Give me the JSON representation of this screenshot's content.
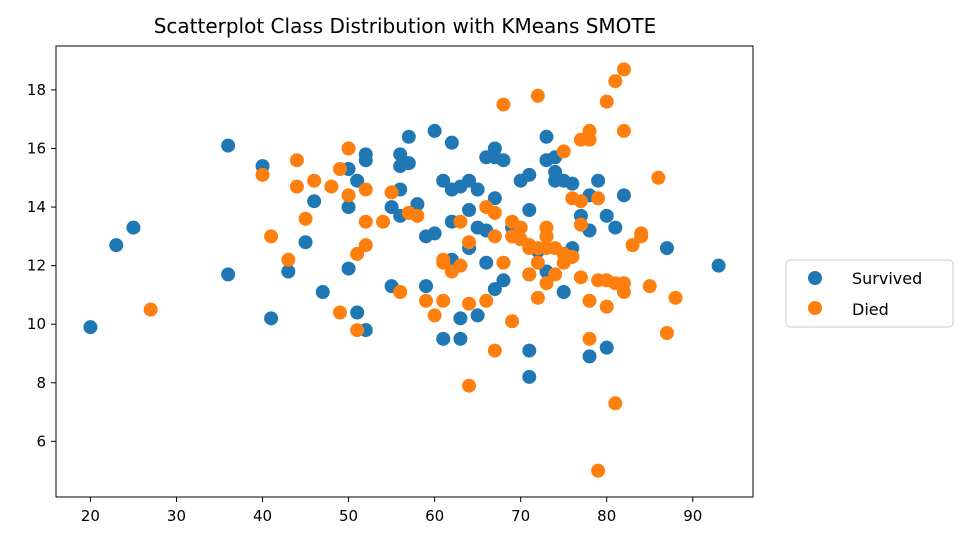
{
  "chart_data": {
    "type": "scatter",
    "title": "Scatterplot Class Distribution with KMeans SMOTE",
    "xlabel": "",
    "ylabel": "",
    "xlim": [
      16,
      97
    ],
    "ylim": [
      4.1,
      19.5
    ],
    "xticks": [
      20,
      30,
      40,
      50,
      60,
      70,
      80,
      90
    ],
    "yticks": [
      6,
      8,
      10,
      12,
      14,
      16,
      18
    ],
    "grid": false,
    "legend_position": "right",
    "series": [
      {
        "name": "Survived",
        "color": "#1f77b4",
        "points": [
          [
            20,
            9.9
          ],
          [
            23,
            12.7
          ],
          [
            25,
            13.3
          ],
          [
            36,
            16.1
          ],
          [
            36,
            11.7
          ],
          [
            40,
            15.4
          ],
          [
            41,
            10.2
          ],
          [
            43,
            11.8
          ],
          [
            45,
            12.8
          ],
          [
            46,
            14.2
          ],
          [
            47,
            11.1
          ],
          [
            50,
            15.3
          ],
          [
            50,
            14.0
          ],
          [
            50,
            11.9
          ],
          [
            51,
            14.9
          ],
          [
            51,
            10.4
          ],
          [
            52,
            15.8
          ],
          [
            52,
            15.6
          ],
          [
            52,
            9.8
          ],
          [
            55,
            14.0
          ],
          [
            55,
            11.3
          ],
          [
            56,
            15.8
          ],
          [
            56,
            15.4
          ],
          [
            56,
            14.6
          ],
          [
            56,
            13.7
          ],
          [
            57,
            16.4
          ],
          [
            57,
            15.5
          ],
          [
            58,
            14.1
          ],
          [
            59,
            13.0
          ],
          [
            59,
            11.3
          ],
          [
            60,
            16.6
          ],
          [
            60,
            13.1
          ],
          [
            61,
            14.9
          ],
          [
            61,
            9.5
          ],
          [
            62,
            16.2
          ],
          [
            62,
            14.6
          ],
          [
            62,
            13.5
          ],
          [
            62,
            12.2
          ],
          [
            63,
            14.7
          ],
          [
            63,
            10.2
          ],
          [
            63,
            9.5
          ],
          [
            64,
            14.9
          ],
          [
            64,
            13.9
          ],
          [
            64,
            12.6
          ],
          [
            65,
            14.6
          ],
          [
            65,
            13.3
          ],
          [
            65,
            10.3
          ],
          [
            66,
            15.7
          ],
          [
            66,
            13.2
          ],
          [
            66,
            12.1
          ],
          [
            67,
            16.0
          ],
          [
            67,
            15.7
          ],
          [
            67,
            14.3
          ],
          [
            67,
            11.2
          ],
          [
            68,
            15.6
          ],
          [
            68,
            11.5
          ],
          [
            69,
            13.3
          ],
          [
            70,
            14.9
          ],
          [
            71,
            15.1
          ],
          [
            71,
            13.9
          ],
          [
            71,
            11.7
          ],
          [
            71,
            9.1
          ],
          [
            71,
            8.2
          ],
          [
            72,
            12.5
          ],
          [
            73,
            16.4
          ],
          [
            73,
            15.6
          ],
          [
            73,
            13.0
          ],
          [
            73,
            11.8
          ],
          [
            74,
            15.7
          ],
          [
            74,
            15.2
          ],
          [
            74,
            14.9
          ],
          [
            75,
            14.9
          ],
          [
            75,
            11.1
          ],
          [
            76,
            14.8
          ],
          [
            76,
            12.6
          ],
          [
            76,
            12.3
          ],
          [
            77,
            13.7
          ],
          [
            78,
            14.4
          ],
          [
            78,
            13.2
          ],
          [
            78,
            8.9
          ],
          [
            79,
            14.9
          ],
          [
            80,
            13.7
          ],
          [
            80,
            9.2
          ],
          [
            81,
            13.3
          ],
          [
            82,
            14.4
          ],
          [
            87,
            12.6
          ],
          [
            93,
            12.0
          ]
        ]
      },
      {
        "name": "Died",
        "color": "#ff7f0e",
        "points": [
          [
            27,
            10.5
          ],
          [
            40,
            15.1
          ],
          [
            41,
            13.0
          ],
          [
            43,
            12.2
          ],
          [
            44,
            15.6
          ],
          [
            44,
            14.7
          ],
          [
            45,
            13.6
          ],
          [
            46,
            14.9
          ],
          [
            48,
            14.7
          ],
          [
            49,
            15.3
          ],
          [
            49,
            10.4
          ],
          [
            50,
            16.0
          ],
          [
            50,
            14.4
          ],
          [
            51,
            12.4
          ],
          [
            51,
            9.8
          ],
          [
            52,
            14.6
          ],
          [
            52,
            13.5
          ],
          [
            52,
            12.7
          ],
          [
            54,
            13.5
          ],
          [
            55,
            14.5
          ],
          [
            56,
            11.1
          ],
          [
            57,
            13.8
          ],
          [
            58,
            13.7
          ],
          [
            59,
            10.8
          ],
          [
            60,
            10.3
          ],
          [
            61,
            12.2
          ],
          [
            61,
            12.1
          ],
          [
            61,
            10.8
          ],
          [
            62,
            11.8
          ],
          [
            63,
            13.5
          ],
          [
            63,
            12.0
          ],
          [
            64,
            12.8
          ],
          [
            64,
            10.7
          ],
          [
            64,
            7.9
          ],
          [
            66,
            14.0
          ],
          [
            66,
            10.8
          ],
          [
            67,
            13.8
          ],
          [
            67,
            13.0
          ],
          [
            67,
            9.1
          ],
          [
            68,
            17.5
          ],
          [
            68,
            12.1
          ],
          [
            69,
            13.5
          ],
          [
            69,
            13.0
          ],
          [
            69,
            10.1
          ],
          [
            70,
            13.3
          ],
          [
            70,
            12.9
          ],
          [
            71,
            12.7
          ],
          [
            71,
            12.6
          ],
          [
            71,
            11.7
          ],
          [
            72,
            17.8
          ],
          [
            72,
            12.6
          ],
          [
            72,
            12.1
          ],
          [
            72,
            10.9
          ],
          [
            73,
            13.3
          ],
          [
            73,
            13.0
          ],
          [
            73,
            12.6
          ],
          [
            73,
            11.4
          ],
          [
            74,
            12.6
          ],
          [
            74,
            11.7
          ],
          [
            75,
            15.9
          ],
          [
            75,
            12.4
          ],
          [
            75,
            12.1
          ],
          [
            76,
            14.3
          ],
          [
            76,
            12.3
          ],
          [
            77,
            16.3
          ],
          [
            77,
            14.2
          ],
          [
            77,
            13.4
          ],
          [
            77,
            11.6
          ],
          [
            78,
            16.6
          ],
          [
            78,
            16.3
          ],
          [
            78,
            10.8
          ],
          [
            78,
            9.5
          ],
          [
            79,
            14.3
          ],
          [
            79,
            11.5
          ],
          [
            79,
            5.0
          ],
          [
            80,
            17.6
          ],
          [
            80,
            11.5
          ],
          [
            80,
            10.6
          ],
          [
            81,
            18.3
          ],
          [
            81,
            11.4
          ],
          [
            81,
            7.3
          ],
          [
            82,
            18.7
          ],
          [
            82,
            16.6
          ],
          [
            82,
            11.4
          ],
          [
            82,
            11.1
          ],
          [
            83,
            12.7
          ],
          [
            84,
            13.1
          ],
          [
            84,
            13.0
          ],
          [
            85,
            11.3
          ],
          [
            86,
            15.0
          ],
          [
            87,
            9.7
          ],
          [
            88,
            10.9
          ]
        ]
      }
    ]
  }
}
